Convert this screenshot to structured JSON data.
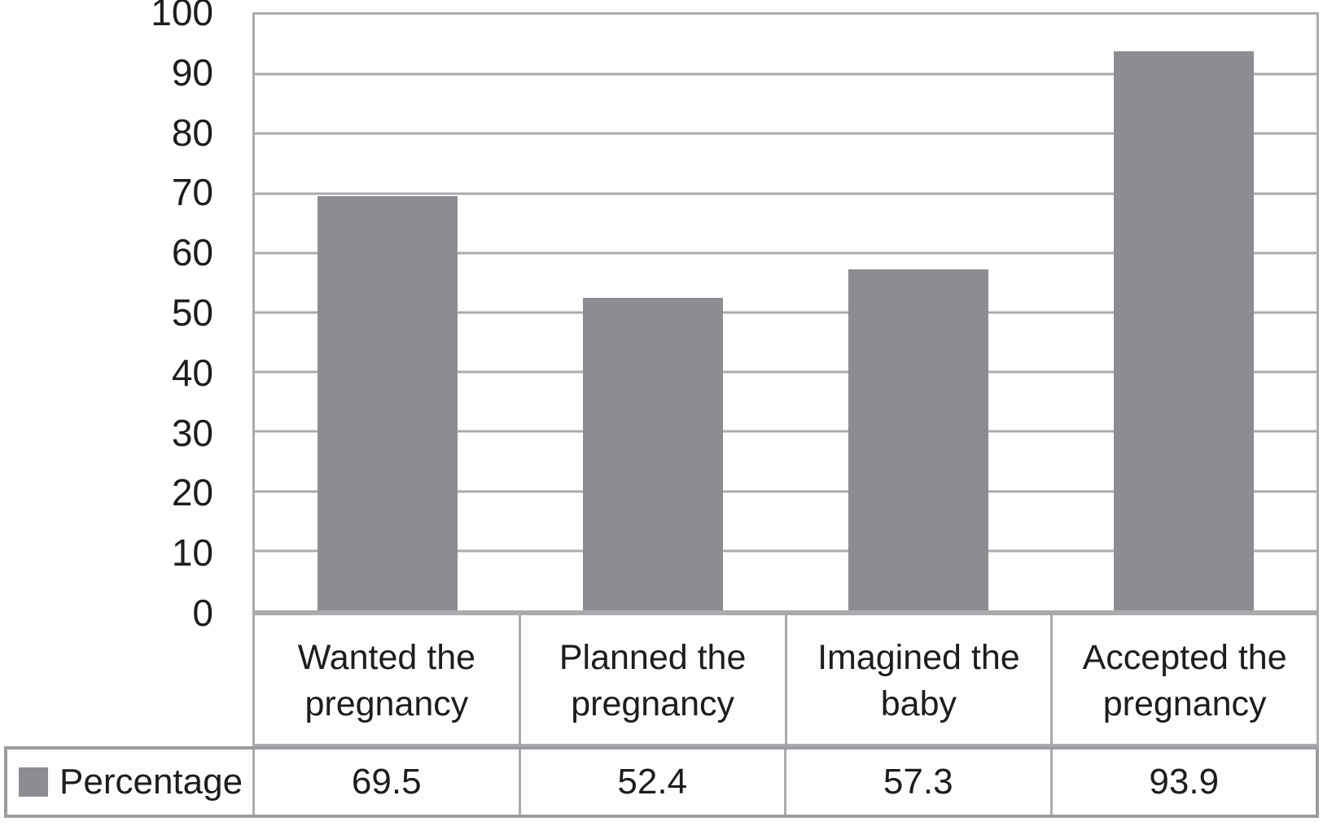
{
  "chart_data": {
    "type": "bar",
    "categories": [
      "Wanted the pregnancy",
      "Planned the pregnancy",
      "Imagined the baby",
      "Accepted the pregnancy"
    ],
    "series": [
      {
        "name": "Percentage",
        "values": [
          69.5,
          52.4,
          57.3,
          93.9
        ]
      }
    ],
    "values_display": [
      "69.5",
      "52.4",
      "57.3",
      "93.9"
    ],
    "yticks": [
      "100",
      "90",
      "80",
      "70",
      "60",
      "50",
      "40",
      "30",
      "20",
      "10",
      "0"
    ],
    "ylim": [
      0,
      100
    ],
    "ytick_step": 10,
    "grid": "horizontal",
    "legend_position": "bottom-table",
    "title": "",
    "xlabel": "",
    "ylabel": "",
    "bar_color": "#8b8d91",
    "gridline_color": "#a9abad",
    "text_color": "#1d1d1f"
  }
}
